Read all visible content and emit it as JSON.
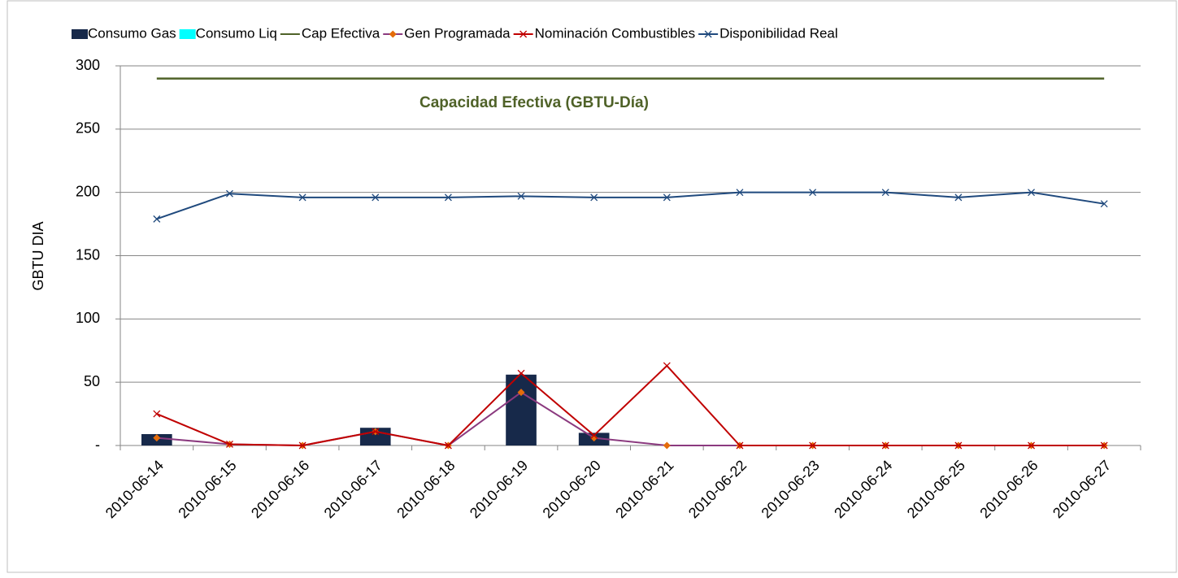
{
  "chart_data": {
    "type": "combo",
    "annotation": "Capacidad Efectiva (GBTU-Día)",
    "y_label": "GBTU  DIA",
    "categories": [
      "2010-06-14",
      "2010-06-15",
      "2010-06-16",
      "2010-06-17",
      "2010-06-18",
      "2010-06-19",
      "2010-06-20",
      "2010-06-21",
      "2010-06-22",
      "2010-06-23",
      "2010-06-24",
      "2010-06-25",
      "2010-06-26",
      "2010-06-27"
    ],
    "ylim": [
      0,
      300
    ],
    "yticks": [
      {
        "value": 0,
        "label": "-"
      },
      50,
      100,
      150,
      200,
      250,
      300
    ],
    "grid": true,
    "legend": "top",
    "series": [
      {
        "name": "Consumo Gas",
        "kind": "bar",
        "color": "#17294a",
        "values": [
          9,
          0,
          0,
          14,
          0,
          56,
          10,
          0,
          0,
          0,
          0,
          0,
          0,
          0
        ]
      },
      {
        "name": "Consumo Liq",
        "kind": "bar",
        "color": "#00ffff",
        "values": [
          0,
          0,
          0,
          0,
          0,
          0,
          0,
          0,
          0,
          0,
          0,
          0,
          0,
          0
        ]
      },
      {
        "name": "Cap Efectiva",
        "kind": "line",
        "marker": "none",
        "color": "#4f6228",
        "values": [
          290,
          290,
          290,
          290,
          290,
          290,
          290,
          290,
          290,
          290,
          290,
          290,
          290,
          290
        ]
      },
      {
        "name": "Gen Programada",
        "kind": "line",
        "marker": "diamond",
        "color": "#8b3a7f",
        "marker_color": "#e46c0a",
        "values": [
          6,
          1,
          0,
          11,
          0,
          42,
          6,
          0,
          0,
          0,
          0,
          0,
          0,
          0
        ]
      },
      {
        "name": "Nominación Combustibles",
        "kind": "line",
        "marker": "x",
        "color": "#c00000",
        "marker_color": "#c00000",
        "values": [
          25,
          1,
          0,
          11,
          0,
          57,
          8,
          63,
          0,
          0,
          0,
          0,
          0,
          0
        ]
      },
      {
        "name": "Disponibilidad Real",
        "kind": "line",
        "marker": "x",
        "color": "#1f497d",
        "marker_color": "#1f497d",
        "values": [
          179,
          199,
          196,
          196,
          196,
          197,
          196,
          196,
          200,
          200,
          200,
          196,
          200,
          191
        ]
      }
    ]
  }
}
